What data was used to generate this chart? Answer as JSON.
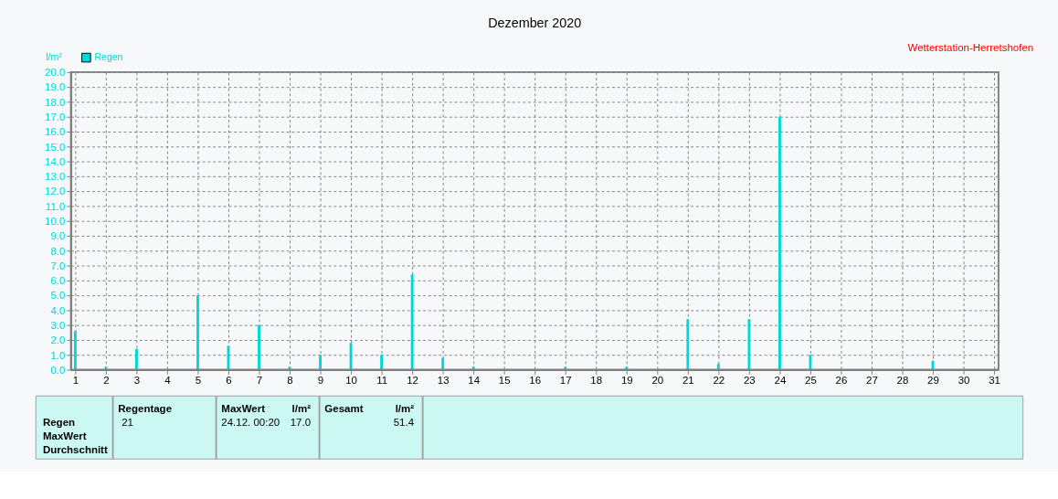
{
  "chart_data": {
    "type": "bar",
    "title": "Dezember 2020",
    "ylabel": "l/m²",
    "x": [
      1,
      2,
      3,
      5,
      6,
      7,
      8,
      9,
      10,
      11,
      12,
      13,
      14,
      17,
      19,
      21,
      22,
      23,
      24,
      25,
      29
    ],
    "series": [
      {
        "name": "Regen",
        "color": "#00d8d8",
        "values": [
          2.6,
          0.2,
          1.4,
          5.0,
          1.6,
          3.0,
          0.2,
          1.0,
          1.8,
          1.0,
          6.4,
          0.8,
          0.2,
          0.2,
          0.2,
          3.4,
          0.4,
          3.4,
          17.0,
          1.0,
          0.6
        ]
      }
    ],
    "xlim": [
      1,
      31
    ],
    "xticks": [
      1,
      2,
      3,
      4,
      5,
      6,
      7,
      8,
      9,
      10,
      11,
      12,
      13,
      14,
      15,
      16,
      17,
      18,
      19,
      20,
      21,
      22,
      23,
      24,
      25,
      26,
      27,
      28,
      29,
      30,
      31
    ],
    "ylim": [
      0,
      20
    ],
    "yticks": [
      {
        "value": 0,
        "label": "0.0"
      },
      {
        "value": 1,
        "label": "1.0"
      },
      {
        "value": 2,
        "label": "2.0"
      },
      {
        "value": 3,
        "label": "3.0"
      },
      {
        "value": 4,
        "label": "4.0"
      },
      {
        "value": 5,
        "label": "5.0"
      },
      {
        "value": 6,
        "label": "6.0"
      },
      {
        "value": 7,
        "label": "7.0"
      },
      {
        "value": 8,
        "label": "8.0"
      },
      {
        "value": 9,
        "label": "9.0"
      },
      {
        "value": 10,
        "label": "10.0"
      },
      {
        "value": 11,
        "label": "11.0"
      },
      {
        "value": 12,
        "label": "12.0"
      },
      {
        "value": 13,
        "label": "13.0"
      },
      {
        "value": 14,
        "label": "14.0"
      },
      {
        "value": 15,
        "label": "15.0"
      },
      {
        "value": 16,
        "label": "16.0"
      },
      {
        "value": 17,
        "label": "17.0"
      },
      {
        "value": 18,
        "label": "18.0"
      },
      {
        "value": 19,
        "label": "19.0"
      },
      {
        "value": 20,
        "label": "20.0"
      }
    ],
    "grid": true,
    "legend": "top left",
    "annotations": [
      "Wetterstation-Herretshofen",
      "Regen",
      "MaxWert",
      "Durchschnitt",
      "Regentage",
      "21",
      "MaxWert",
      "l/m²",
      "24.12.  00:20",
      "17.0",
      "Gesamt",
      "l/m²",
      "51.4"
    ]
  }
}
